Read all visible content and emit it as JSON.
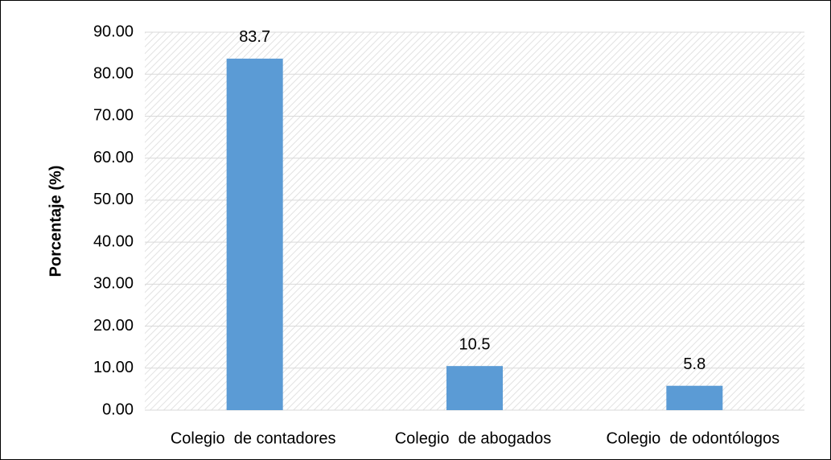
{
  "chart_data": {
    "type": "bar",
    "ylabel": "Porcentaje (%)",
    "categories": [
      "Colegio  de contadores",
      "Colegio  de abogados",
      "Colegio  de odontólogos"
    ],
    "values": [
      83.7,
      10.5,
      5.8
    ],
    "color": "#5b9bd5",
    "ylim": [
      0,
      90
    ],
    "yticks": [
      {
        "value": 0,
        "label": "0.00"
      },
      {
        "value": 10,
        "label": "10.00"
      },
      {
        "value": 20,
        "label": "20.00"
      },
      {
        "value": 30,
        "label": "30.00"
      },
      {
        "value": 40,
        "label": "40.00"
      },
      {
        "value": 50,
        "label": "50.00"
      },
      {
        "value": 60,
        "label": "60.00"
      },
      {
        "value": 70,
        "label": "70.00"
      },
      {
        "value": 80,
        "label": "80.00"
      },
      {
        "value": 90,
        "label": "90.00"
      }
    ],
    "grid": true
  }
}
